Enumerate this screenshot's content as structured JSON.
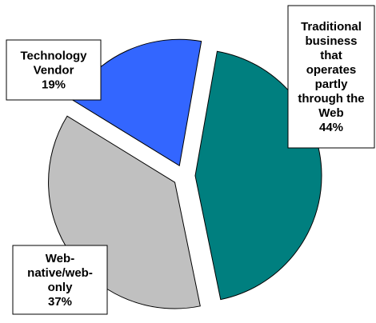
{
  "chart_data": {
    "type": "pie",
    "title": "",
    "slices": [
      {
        "key": "traditional",
        "label_lines": [
          "Traditional",
          "business",
          "that",
          "operates",
          "partly",
          "through the",
          "Web",
          "44%"
        ],
        "value": 44,
        "color": "#007f7f"
      },
      {
        "key": "webnative",
        "label_lines": [
          "Web-",
          "native/web-",
          "only",
          "37%"
        ],
        "value": 37,
        "color": "#c0c0c0"
      },
      {
        "key": "techvendor",
        "label_lines": [
          "Technology",
          "Vendor",
          "19%"
        ],
        "value": 19,
        "color": "#3366ff"
      }
    ]
  }
}
